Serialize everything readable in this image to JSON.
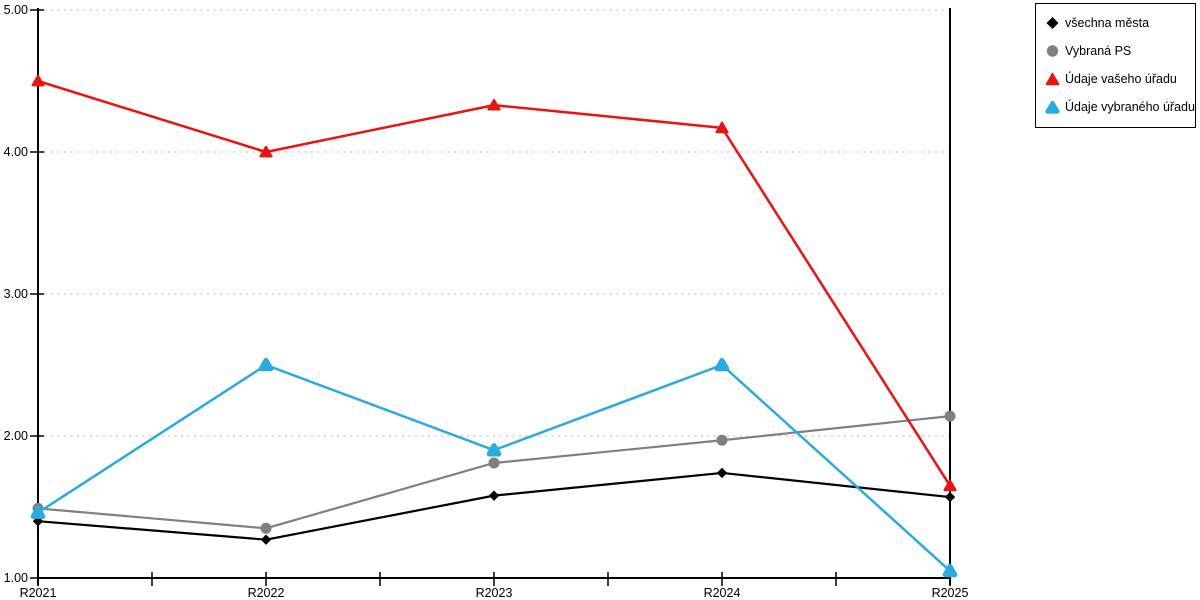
{
  "chart_data": {
    "type": "line",
    "categories": [
      "R2021",
      "R2022",
      "R2023",
      "R2024",
      "R2025"
    ],
    "series": [
      {
        "name": "všechna města",
        "marker": "diamond",
        "color": "#000000",
        "values": [
          1.4,
          1.27,
          1.58,
          1.74,
          1.57
        ]
      },
      {
        "name": "Vybraná PS",
        "marker": "circle",
        "color": "#808080",
        "values": [
          1.49,
          1.35,
          1.81,
          1.97,
          2.14
        ]
      },
      {
        "name": "Údaje vašeho úřadu",
        "marker": "triangle",
        "color": "#ee1111",
        "values": [
          4.5,
          4.0,
          4.33,
          4.17,
          1.65
        ]
      },
      {
        "name": "Údaje vybraného úřadu",
        "marker": "triangle-rounded",
        "color": "#29abe2",
        "values": [
          1.46,
          2.5,
          1.9,
          2.5,
          1.05
        ]
      }
    ],
    "title": "",
    "xlabel": "",
    "ylabel": "",
    "ylim": [
      1.0,
      5.0
    ],
    "ytick_labels": [
      "1.00",
      "2.00",
      "3.00",
      "4.00",
      "5.00"
    ],
    "grid": "horizontal-dotted",
    "gridline_color": "#c8c8c8",
    "axis_color": "#000000",
    "legend_position": "top-right"
  }
}
